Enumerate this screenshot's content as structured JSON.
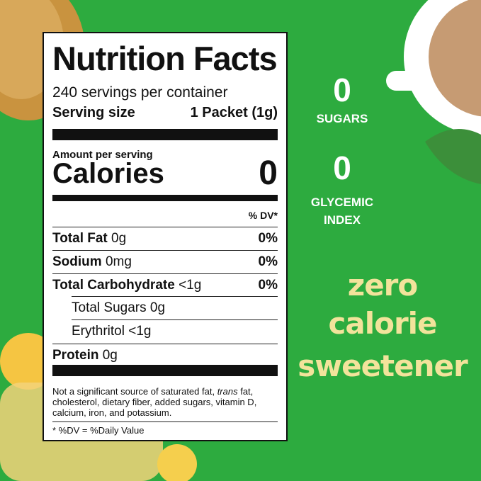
{
  "label": {
    "title": "Nutrition Facts",
    "servings": "240 servings per container",
    "serving_size_label": "Serving size",
    "serving_size_value": "1 Packet (1g)",
    "amount_per_serving": "Amount per serving",
    "calories_label": "Calories",
    "calories_value": "0",
    "dv_header": "% DV*",
    "nutrients": [
      {
        "name": "Total Fat",
        "amount": "0g",
        "dv": "0%"
      },
      {
        "name": "Sodium",
        "amount": "0mg",
        "dv": "0%"
      },
      {
        "name": "Total Carbohydrate",
        "amount": "<1g",
        "dv": "0%"
      }
    ],
    "sub_nutrients": [
      "Total Sugars 0g",
      "Erythritol <1g"
    ],
    "protein": {
      "name": "Protein",
      "amount": "0g"
    },
    "footnote": [
      "Not a significant source of saturated fat, ",
      "trans",
      " fat, cholesterol, dietary fiber, added sugars, vitamin D, calcium, iron, and potassium."
    ],
    "dv_note": "* %DV = %Daily Value"
  },
  "badges": [
    {
      "value": "0",
      "label": "SUGARS"
    },
    {
      "value": "0",
      "label": "GLYCEMIC INDEX"
    }
  ],
  "tagline": [
    "zero",
    "calorie",
    "sweetener"
  ]
}
